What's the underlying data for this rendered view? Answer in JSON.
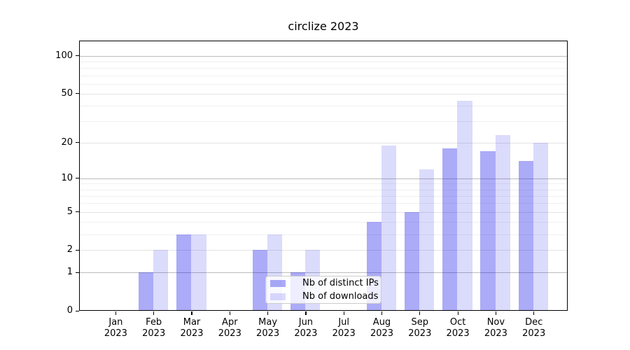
{
  "chart_data": {
    "type": "bar",
    "title": "circlize 2023",
    "categories": [
      "Jan",
      "Feb",
      "Mar",
      "Apr",
      "May",
      "Jun",
      "Jul",
      "Aug",
      "Sep",
      "Oct",
      "Nov",
      "Dec"
    ],
    "year_label": "2023",
    "series": [
      {
        "name": "Nb of distinct IPs",
        "values": [
          0,
          1,
          3,
          0,
          2,
          1,
          0,
          4,
          5,
          18,
          17,
          14
        ],
        "color": "rgba(15,15,232,0.35)"
      },
      {
        "name": "Nb of downloads",
        "values": [
          0,
          2,
          3,
          0,
          3,
          2,
          0,
          19,
          12,
          44,
          23,
          20
        ],
        "color": "rgba(15,15,235,0.15)"
      }
    ],
    "yscale": "log1p",
    "ylim": [
      0,
      132
    ],
    "yticks_major": [
      0,
      1,
      2,
      5,
      10,
      20,
      50,
      100
    ],
    "ytick_labels": [
      "0",
      "1",
      "2",
      "5",
      "10",
      "20",
      "50",
      "100"
    ],
    "yticks_decade": [
      1,
      10,
      100
    ],
    "yticks_minor": [
      3,
      4,
      6,
      7,
      8,
      9,
      30,
      40,
      60,
      70,
      80,
      90
    ],
    "grid": "horizontal",
    "grid_colors": {
      "decade": "#bcbcbc",
      "labeled": "#e4e4e4",
      "minor": "#f0f0f0"
    },
    "legend_position": "lower center",
    "xlabel": "",
    "ylabel": ""
  }
}
